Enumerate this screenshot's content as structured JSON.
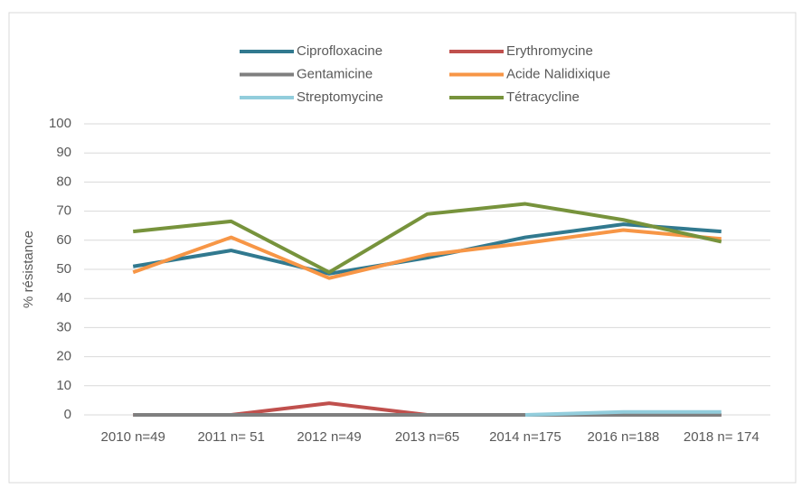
{
  "chart_data": {
    "type": "line",
    "y_label": "% résistance",
    "categories": [
      "2010 n=49",
      "2011 n= 51",
      "2012 n=49",
      "2013 n=65",
      "2014 n=175",
      "2016 n=188",
      "2018 n= 174"
    ],
    "series": [
      {
        "name": "Ciprofloxacine",
        "color": "#31798f",
        "values": [
          51,
          56.5,
          48.5,
          54,
          61,
          65.5,
          63
        ]
      },
      {
        "name": "Erythromycine",
        "color": "#c0504d",
        "values": [
          0,
          0,
          4,
          0,
          0,
          0,
          0
        ]
      },
      {
        "name": "Gentamicine",
        "color": "#7f7f7f",
        "values": [
          0,
          0,
          0,
          0,
          0,
          0,
          0
        ]
      },
      {
        "name": "Acide Nalidixique",
        "color": "#f79646",
        "values": [
          49,
          61,
          47,
          55,
          59,
          63.5,
          60.5
        ]
      },
      {
        "name": "Streptomycine",
        "color": "#92cddc",
        "values": [
          null,
          null,
          null,
          null,
          0,
          1,
          1
        ]
      },
      {
        "name": "Tétracycline",
        "color": "#77933c",
        "values": [
          63,
          66.5,
          49,
          69,
          72.5,
          67,
          59.5
        ]
      }
    ],
    "ylim": [
      0,
      100
    ],
    "yticks": [
      0,
      10,
      20,
      30,
      40,
      50,
      60,
      70,
      80,
      90,
      100
    ],
    "grid": true,
    "legend": "top"
  }
}
